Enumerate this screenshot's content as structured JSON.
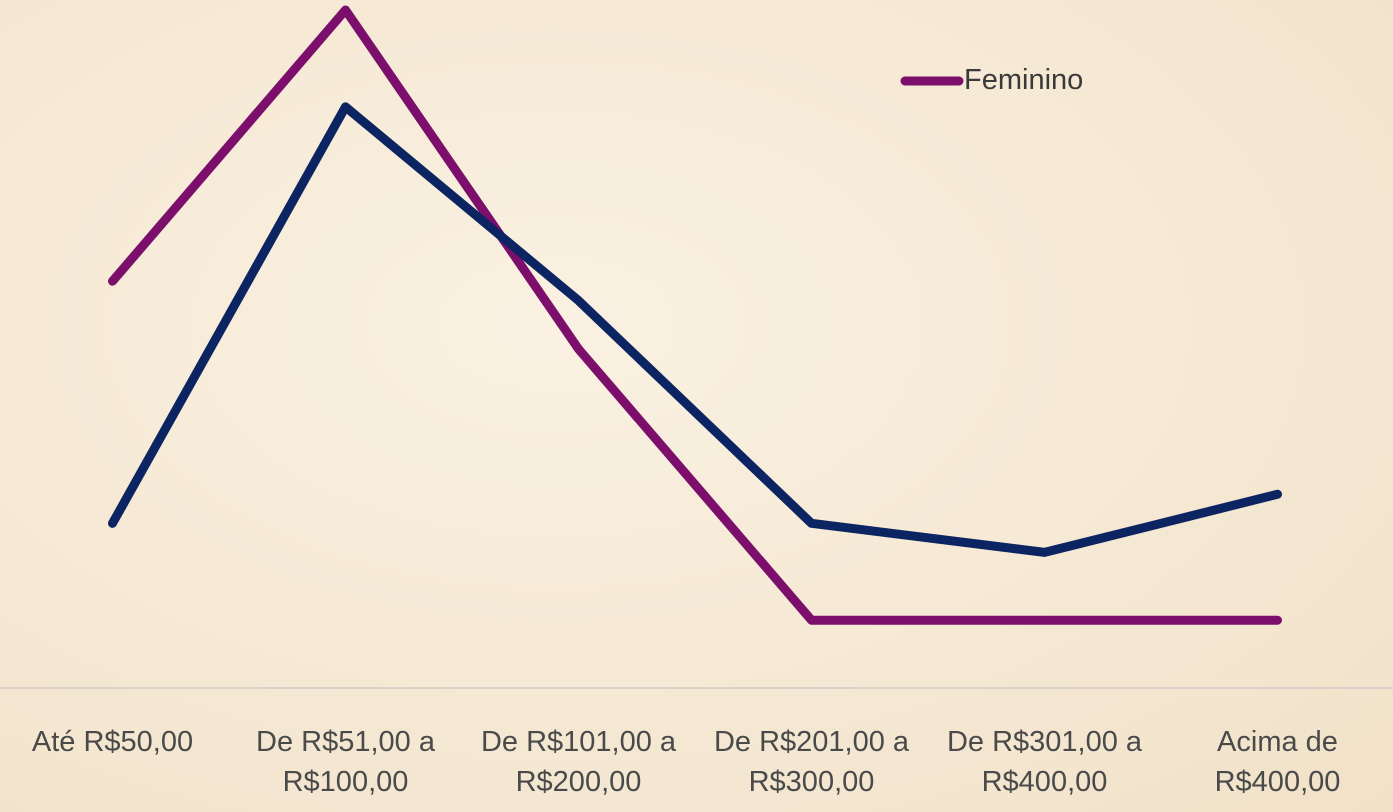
{
  "chart_data": {
    "type": "line",
    "categories": [
      "Até R$50,00",
      "De R$51,00 a R$100,00",
      "De R$101,00 a R$200,00",
      "De R$201,00 a R$300,00",
      "De R$301,00 a R$400,00",
      "Acima de R$400,00"
    ],
    "series": [
      {
        "name": "Feminino",
        "color": "#7b0f6b",
        "values": [
          42,
          70,
          35,
          7,
          7,
          7
        ]
      },
      {
        "color": "#0c2461",
        "values": [
          17,
          60,
          40,
          17,
          14,
          20
        ]
      }
    ],
    "ylim": [
      0,
      70
    ]
  }
}
